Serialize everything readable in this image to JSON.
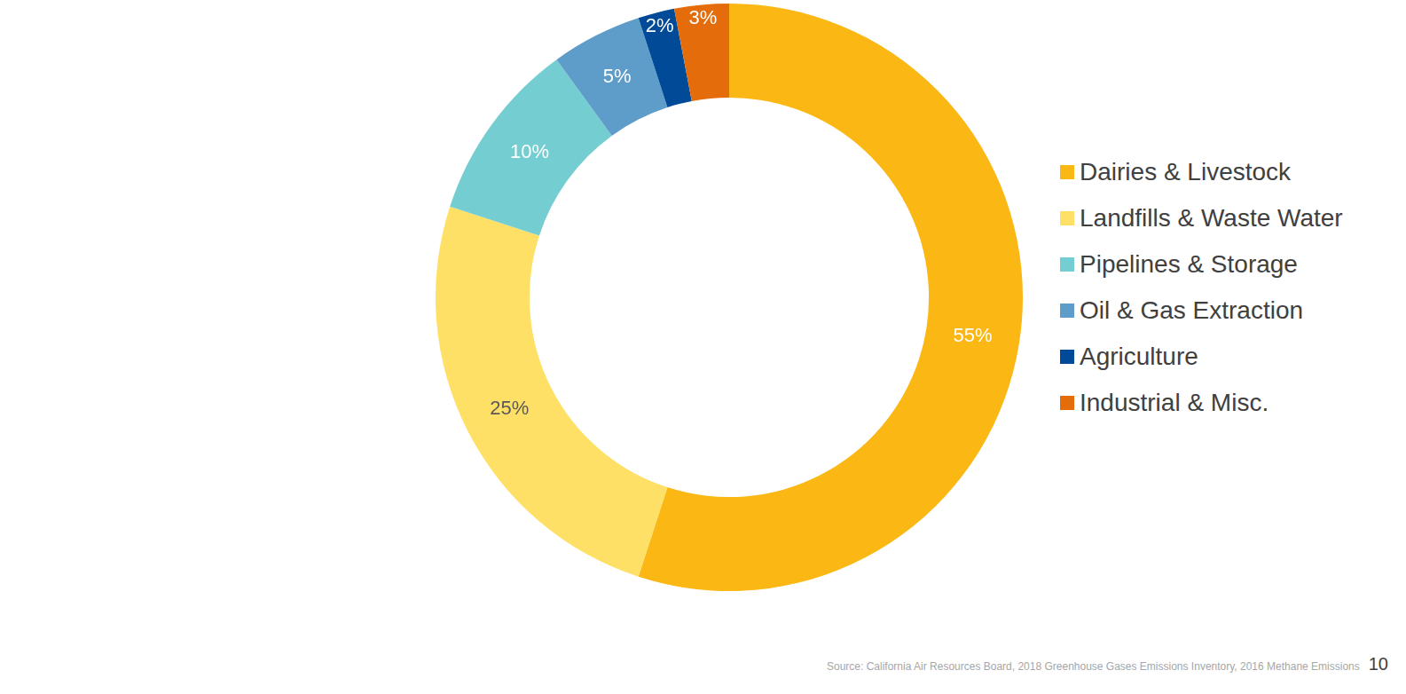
{
  "chart_data": {
    "type": "doughnut",
    "categories": [
      "Dairies & Livestock",
      "Landfills & Waste Water",
      "Pipelines & Storage",
      "Oil & Gas Extraction",
      "Agriculture",
      "Industrial & Misc."
    ],
    "values": [
      55,
      25,
      10,
      5,
      2,
      3
    ],
    "value_labels": [
      "55%",
      "25%",
      "10%",
      "5%",
      "2%",
      "3%"
    ],
    "colors": [
      "#fbb714",
      "#ffe066",
      "#74cdd1",
      "#5e9cc9",
      "#004a97",
      "#e46c0a"
    ],
    "data_labels": true,
    "legend": "right",
    "source": "Source: California Air Resources Board,  2018 Greenhouse Gases Emissions Inventory, 2016 Methane Emissions",
    "page_number": 10
  }
}
